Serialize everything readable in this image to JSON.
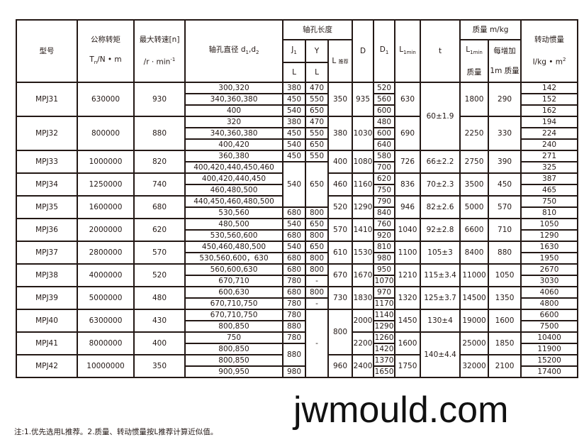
{
  "header": {
    "model": "型号",
    "torque": "公称转矩",
    "torque_unit": "Tn/N • m",
    "speed": "最大转速[n]",
    "speed_unit": "/r · min-1",
    "bore": "轴孔直径 d1,d2",
    "bore_len": "轴孔长度",
    "J1": "J1",
    "Y": "Y",
    "L": "L",
    "L_rec": "L 推荐",
    "D": "D",
    "D1": "D1",
    "L1min": "L1min",
    "t": "t",
    "mass": "质量 m/kg",
    "mass_l1": "L1min 质量",
    "mass_per_m": "每增加 1m 质量",
    "inertia": "转动惯量",
    "inertia_unit": "I/kg • m2"
  },
  "rows": [
    [
      [
        "MPJ31",
        3
      ],
      [
        "630000",
        3
      ],
      [
        "930",
        3
      ],
      "300,320",
      "380",
      "470",
      [
        "350",
        3
      ],
      [
        "935",
        3
      ],
      "520",
      [
        "630",
        3
      ],
      [
        "60±1.9",
        6
      ],
      [
        "1800",
        3
      ],
      [
        "290",
        3
      ],
      "142"
    ],
    [
      "340,360,380",
      "450",
      "550",
      "560",
      "152"
    ],
    [
      "400",
      "540",
      "650",
      "600",
      "162"
    ],
    [
      [
        "MPJ32",
        3
      ],
      [
        "800000",
        3
      ],
      [
        "880",
        3
      ],
      "320",
      "380",
      "470",
      [
        "380",
        3
      ],
      [
        "1030",
        3
      ],
      "480",
      [
        "690",
        3
      ],
      [
        "2250",
        3
      ],
      [
        "330",
        3
      ],
      "194"
    ],
    [
      "340,360,380",
      "450",
      "550",
      "600",
      "224"
    ],
    [
      "400,420",
      "540",
      "650",
      "640",
      "240"
    ],
    [
      [
        "MPJ33",
        2
      ],
      [
        "1000000",
        2
      ],
      [
        "820",
        2
      ],
      "360,380",
      "450",
      "550",
      [
        "400",
        2
      ],
      [
        "1080",
        2
      ],
      "580",
      [
        "726",
        2
      ],
      [
        "66±2.2",
        2
      ],
      [
        "2750",
        2
      ],
      [
        "390",
        2
      ],
      "271"
    ],
    [
      "400,420,440,450,460",
      [
        "540",
        4
      ],
      [
        "650",
        4
      ],
      "700",
      "325"
    ],
    [
      [
        "MPJ34",
        2
      ],
      [
        "1250000",
        2
      ],
      [
        "740",
        2
      ],
      "400,420,440,450",
      [
        "460",
        2
      ],
      [
        "1160",
        2
      ],
      "620",
      [
        "836",
        2
      ],
      [
        "70±2.3",
        2
      ],
      [
        "3500",
        2
      ],
      [
        "450",
        2
      ],
      "387"
    ],
    [
      "460,480,500",
      "750",
      "465"
    ],
    [
      [
        "MPJ35",
        2
      ],
      [
        "1600000",
        2
      ],
      [
        "680",
        2
      ],
      "440,450,460,480,500",
      [
        "520",
        2
      ],
      [
        "1290",
        2
      ],
      "790",
      [
        "946",
        2
      ],
      [
        "82±2.6",
        2
      ],
      [
        "5000",
        2
      ],
      [
        "570",
        2
      ],
      "750"
    ],
    [
      "530,560",
      "680",
      "800",
      "840",
      "810"
    ],
    [
      [
        "MPJ36",
        2
      ],
      [
        "2000000",
        2
      ],
      [
        "620",
        2
      ],
      "480,500",
      "540",
      "650",
      [
        "570",
        2
      ],
      [
        "1410",
        2
      ],
      "760",
      [
        "1040",
        2
      ],
      [
        "92±2.8",
        2
      ],
      [
        "6600",
        2
      ],
      [
        "710",
        2
      ],
      "1050"
    ],
    [
      "530,560,600",
      "680",
      "800",
      "920",
      "1290"
    ],
    [
      [
        "MPJ37",
        2
      ],
      [
        "2800000",
        2
      ],
      [
        "570",
        2
      ],
      "450,460,480,500",
      "540",
      "650",
      [
        "610",
        2
      ],
      [
        "1530",
        2
      ],
      "810",
      [
        "1100",
        2
      ],
      [
        "105±3",
        2
      ],
      [
        "8400",
        2
      ],
      [
        "880",
        2
      ],
      "1630"
    ],
    [
      "530,560,600，630",
      "680",
      "800",
      "980",
      "1950"
    ],
    [
      [
        "MPJ38",
        2
      ],
      [
        "4000000",
        2
      ],
      [
        "520",
        2
      ],
      "560,600,630",
      "680",
      "800",
      [
        "670",
        2
      ],
      [
        "1670",
        2
      ],
      "950",
      [
        "1210",
        2
      ],
      [
        "115±3.4",
        2
      ],
      [
        "11000",
        2
      ],
      [
        "1050",
        2
      ],
      "2670"
    ],
    [
      "670,710",
      "780",
      "-",
      "1070",
      "3030"
    ],
    [
      [
        "MPJ39",
        2
      ],
      [
        "5000000",
        2
      ],
      [
        "480",
        2
      ],
      "600,630",
      "680",
      "800",
      [
        "730",
        2
      ],
      [
        "1830",
        2
      ],
      "970",
      [
        "1320",
        2
      ],
      [
        "125±3.7",
        2
      ],
      [
        "14500",
        2
      ],
      [
        "1350",
        2
      ],
      "4060"
    ],
    [
      "670,710,750",
      "780",
      "-",
      "1170",
      "4800"
    ],
    [
      [
        "MPJ40",
        2
      ],
      [
        "6300000",
        2
      ],
      [
        "430",
        2
      ],
      "670,710,750",
      "780",
      [
        "-",
        6
      ],
      [
        "800",
        4
      ],
      [
        "2000",
        2
      ],
      "1140",
      [
        "1450",
        2
      ],
      [
        "130±4",
        2
      ],
      [
        "19000",
        2
      ],
      [
        "1600",
        2
      ],
      "6600"
    ],
    [
      "800,850",
      "880",
      "1290",
      "7500"
    ],
    [
      [
        "MPJ41",
        2
      ],
      [
        "8000000",
        2
      ],
      [
        "400",
        2
      ],
      "750",
      "780",
      [
        "2200",
        2
      ],
      "1260",
      [
        "1600",
        2
      ],
      [
        "140±4.4",
        4
      ],
      [
        "25000",
        2
      ],
      [
        "1850",
        2
      ],
      "10400"
    ],
    [
      "800,850",
      [
        "880",
        2
      ],
      "1420",
      "11900"
    ],
    [
      [
        "MPJ42",
        2
      ],
      [
        "10000000",
        2
      ],
      [
        "350",
        2
      ],
      "800,850",
      [
        "960",
        2
      ],
      [
        "2400",
        2
      ],
      "1370",
      [
        "1750",
        2
      ],
      [
        "32000",
        2
      ],
      [
        "2100",
        2
      ],
      "15200"
    ],
    [
      "900,950",
      "980",
      "1650",
      "17400"
    ]
  ],
  "note": "注:1.优先选用L推荐。2.质量、转动惯量按L推荐计算近似值。",
  "watermark": "jwmould.com"
}
